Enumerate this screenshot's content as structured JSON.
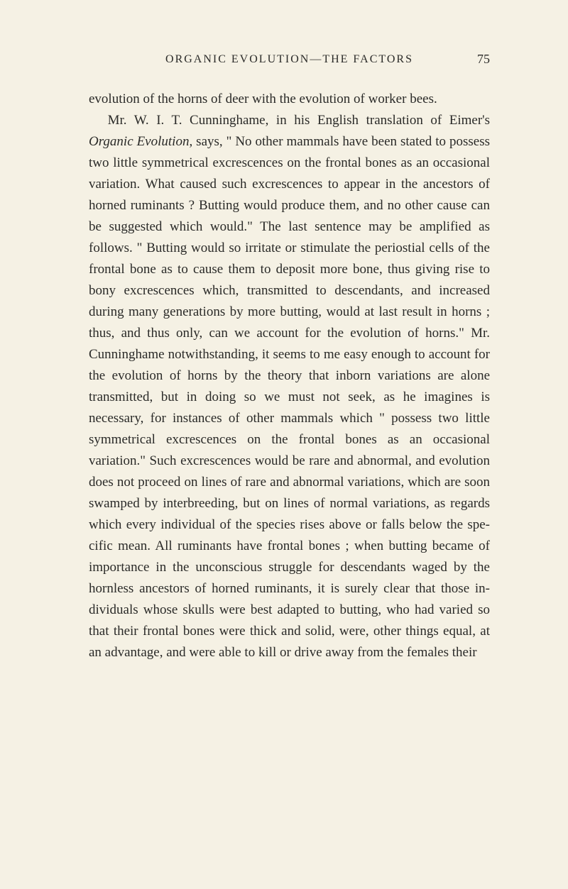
{
  "header": {
    "title": "ORGANIC EVOLUTION—THE FACTORS",
    "pageNumber": "75"
  },
  "paragraphs": {
    "p1": "evolution of the horns of deer with the evolution of worker bees.",
    "p2_pre": "Mr. W. I. T. Cunninghame, in his English translation of Eimer's ",
    "p2_italic": "Organic Evolution",
    "p2_post": ", says, \" No other mammals have been stated to possess two little symmetrical ex­crescences on the frontal bones as an occasional variation. What caused such excrescences to appear in the ances­tors of horned ruminants ? Butting would produce them, and no other cause can be suggested which would.\" The last sentence may be amplified as follows. \" Butting would so irritate or stimulate the periostial cells of the frontal bone as to cause them to deposit more bone, thus giving rise to bony excrescences which, transmitted to descendants, and increased during many generations by more butting, would at last result in horns ; thus, and thus only, can we account for the evolution of horns.\" Mr. Cunninghame notwithstand­ing, it seems to me easy enough to account for the evolution of horns by the theory that inborn variations are alone transmitted, but in doing so we must not seek, as he imagines is necessary, for instances of other mammals which \" possess two little symmetrical excres­cences on the frontal bones as an occasional variation.\" Such excrescences would be rare and abnormal, and evo­lution does not proceed on lines of rare and abnormal variations, which are soon swamped by interbreeding, but on lines of normal variations, as regards which every in­dividual of the species rises above or falls below the spe­cific mean. All ruminants have frontal bones ; when butting became of importance in the unconscious struggle for descendants waged by the hornless ancestors of horned ruminants, it is surely clear that those in­dividuals whose skulls were best adapted to butting, who had varied so that their frontal bones were thick and solid, were, other things equal, at an advantage, and were able to kill or drive away from the females their"
  }
}
